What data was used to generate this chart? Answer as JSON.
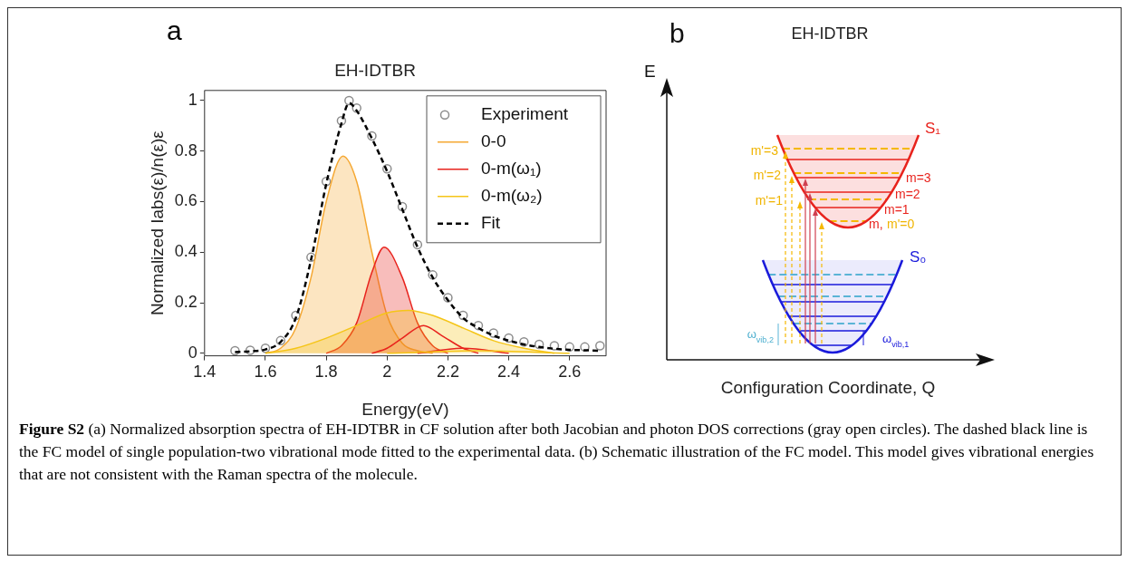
{
  "chart_data": [
    {
      "type": "line",
      "title": "EH-IDTBR",
      "xlabel": "Energy(eV)",
      "ylabel": "Normalized Iabs(ε)/n(ε)ε",
      "xlim": [
        1.4,
        2.72
      ],
      "xticks": [
        1.4,
        1.6,
        1.8,
        2,
        2.2,
        2.4,
        2.6
      ],
      "ylim": [
        -0.01,
        1.04
      ],
      "yticks": [
        0,
        0.2,
        0.4,
        0.6,
        0.8,
        1
      ],
      "grid": false,
      "legend": "top right",
      "annotations": [
        "a",
        "Figure S2",
        "(a) Normalized absorption spectra of EH-IDTBR in CF solution after both Jacobian and photon DOS corrections (gray open circles). The dashed black line is the FC model of single population-two vibrational mode fitted to the experimental data. (b) Schematic illustration of the FC model. This model gives vibrational energies that are not consistent with the Raman spectra of the molecule."
      ],
      "series": [
        {
          "name": "Experiment",
          "type": "scatter",
          "marker": "circle",
          "color": "#8c8c8c",
          "x": [
            1.5,
            1.55,
            1.6,
            1.65,
            1.7,
            1.75,
            1.8,
            1.85,
            1.875,
            1.9,
            1.95,
            2,
            2.05,
            2.1,
            2.15,
            2.2,
            2.25,
            2.3,
            2.35,
            2.4,
            2.45,
            2.5,
            2.55,
            2.6,
            2.65,
            2.7
          ],
          "values": [
            0.01,
            0.012,
            0.02,
            0.05,
            0.15,
            0.38,
            0.68,
            0.92,
            1,
            0.97,
            0.86,
            0.73,
            0.58,
            0.43,
            0.31,
            0.22,
            0.15,
            0.11,
            0.08,
            0.06,
            0.045,
            0.035,
            0.03,
            0.025,
            0.025,
            0.03
          ]
        },
        {
          "name": "0-0",
          "type": "area",
          "color": "#f5a833",
          "x": [
            1.6,
            1.65,
            1.7,
            1.75,
            1.8,
            1.855,
            1.9,
            1.95,
            2,
            2.05,
            2.1,
            2.15
          ],
          "values": [
            0,
            0.02,
            0.1,
            0.3,
            0.6,
            0.78,
            0.68,
            0.4,
            0.15,
            0.04,
            0.01,
            0
          ]
        },
        {
          "name": "0-m(ω₁)",
          "type": "area",
          "color": "#e8231d",
          "x": [
            1.8,
            1.85,
            1.9,
            1.95,
            1.99,
            2.05,
            2.1,
            2.15,
            2.2
          ],
          "values": [
            0,
            0.03,
            0.12,
            0.32,
            0.42,
            0.3,
            0.12,
            0.03,
            0
          ]
        },
        {
          "name": "0-m(ω₂)",
          "type": "area",
          "color": "#f5c518",
          "x": [
            1.6,
            1.7,
            1.8,
            1.9,
            2,
            2.07,
            2.15,
            2.25,
            2.35,
            2.45,
            2.55
          ],
          "values": [
            0,
            0.02,
            0.06,
            0.11,
            0.16,
            0.17,
            0.15,
            0.1,
            0.05,
            0.02,
            0
          ]
        },
        {
          "type": "line",
          "color": "#e8231d",
          "x": [
            1.95,
            2,
            2.05,
            2.12,
            2.18,
            2.25,
            2.3
          ],
          "values": [
            0,
            0.02,
            0.06,
            0.11,
            0.07,
            0.02,
            0
          ]
        },
        {
          "type": "line",
          "color": "#e8231d",
          "x": [
            2.1,
            2.25,
            2.4
          ],
          "values": [
            0,
            0.02,
            0
          ]
        },
        {
          "type": "line",
          "color": "#f5c518",
          "x": [
            2,
            2.3,
            2.6
          ],
          "values": [
            0,
            0.01,
            0
          ]
        },
        {
          "name": "Fit",
          "type": "line",
          "line_style": "dashed",
          "color": "#000000",
          "x": [
            1.5,
            1.55,
            1.6,
            1.65,
            1.7,
            1.75,
            1.8,
            1.85,
            1.875,
            1.9,
            1.95,
            2,
            2.05,
            2.1,
            2.15,
            2.2,
            2.25,
            2.3,
            2.35,
            2.4,
            2.45,
            2.5,
            2.55,
            2.6,
            2.65,
            2.7
          ],
          "values": [
            0.005,
            0.008,
            0.015,
            0.045,
            0.14,
            0.37,
            0.67,
            0.91,
            0.99,
            0.96,
            0.85,
            0.72,
            0.57,
            0.42,
            0.3,
            0.21,
            0.14,
            0.1,
            0.07,
            0.05,
            0.035,
            0.025,
            0.018,
            0.014,
            0.012,
            0.01
          ]
        }
      ]
    },
    {
      "type": "other",
      "title": "EH-IDTBR",
      "xlabel": "Configuration Coordinate, Q",
      "ylabel": "E",
      "annotations": [
        "b",
        "S₁",
        "S₀",
        "m'=3",
        "m'=2",
        "m'=1",
        "m=3",
        "m=2",
        "m=1",
        "m,",
        "m'=0",
        "ω$_{vib,2}$",
        "ω$_{vib,1}$"
      ]
    }
  ]
}
